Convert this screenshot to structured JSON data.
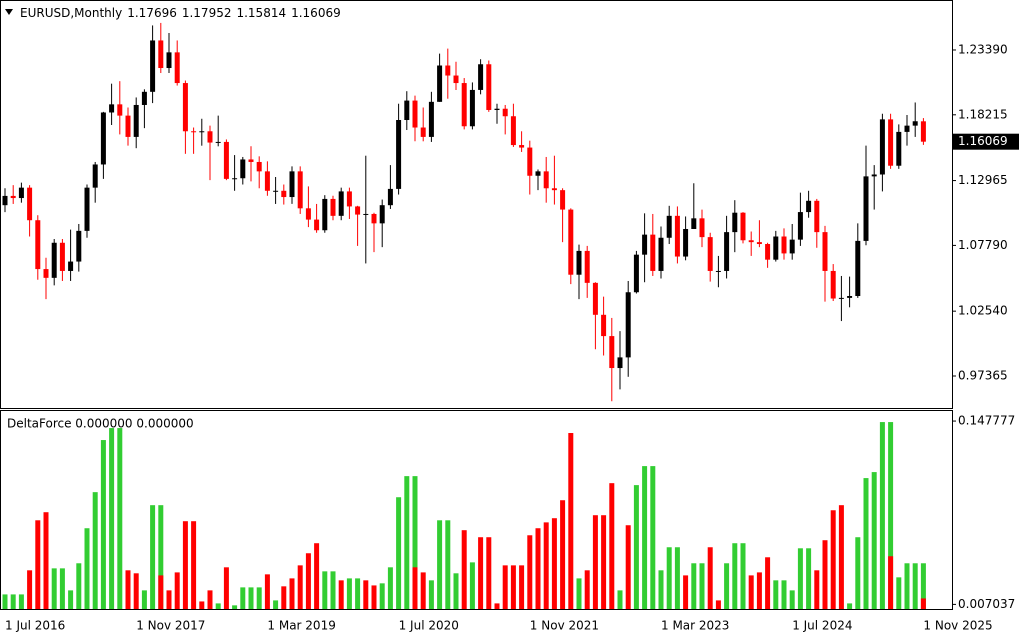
{
  "chart_data": [
    {
      "type": "candlestick",
      "title": "EURUSD,Monthly",
      "categories": [
        "1 Jul 2016",
        null,
        null,
        null,
        null,
        null,
        null,
        null,
        null,
        null,
        null,
        null,
        null,
        null,
        null,
        null,
        "1 Nov 2017",
        null,
        null,
        null,
        null,
        null,
        null,
        null,
        null,
        null,
        null,
        null,
        null,
        null,
        null,
        null,
        "1 Mar 2019",
        null,
        null,
        null,
        null,
        null,
        null,
        null,
        null,
        null,
        null,
        null,
        null,
        null,
        null,
        null,
        "1 Jul 2020",
        null,
        null,
        null,
        null,
        null,
        null,
        null,
        null,
        null,
        null,
        null,
        null,
        null,
        null,
        null,
        "1 Nov 2021",
        null,
        null,
        null,
        null,
        null,
        null,
        null,
        null,
        null,
        null,
        null,
        null,
        null,
        null,
        null,
        "1 Mar 2023",
        null,
        null,
        null,
        null,
        null,
        null,
        null,
        null,
        null,
        null,
        null,
        null,
        null,
        null,
        null,
        "1 Jul 2024",
        null,
        null,
        null,
        null,
        null,
        null,
        null,
        null,
        null,
        null,
        null,
        null,
        null,
        null,
        null,
        "1 Nov 2025"
      ],
      "open": [
        1.11,
        1.1174,
        1.1157,
        1.124,
        1.098,
        1.059,
        1.052,
        1.08,
        1.0575,
        1.065,
        1.0895,
        1.124,
        1.1425,
        1.184,
        1.1905,
        1.1815,
        1.1645,
        1.19,
        1.2005,
        1.2415,
        1.2195,
        1.232,
        1.2075,
        1.169,
        1.1685,
        1.169,
        1.16,
        1.1605,
        1.131,
        1.1315,
        1.1465,
        1.1445,
        1.137,
        1.1215,
        1.1215,
        1.1165,
        1.137,
        1.1075,
        1.0985,
        1.09,
        1.115,
        1.1015,
        1.121,
        1.109,
        1.1025,
        1.103,
        1.0955,
        1.11,
        1.123,
        1.178,
        1.1935,
        1.172,
        1.1645,
        1.1925,
        1.2215,
        1.2135,
        1.2075,
        1.173,
        1.202,
        1.2225,
        1.186,
        1.187,
        1.181,
        1.158,
        1.156,
        1.1335,
        1.137,
        1.1235,
        1.122,
        1.1065,
        1.0545,
        1.0735,
        1.048,
        1.0225,
        1.0055,
        0.98,
        0.9885,
        1.0405,
        1.0705,
        1.0865,
        1.0575,
        1.084,
        1.1015,
        1.069,
        1.091,
        1.0995,
        1.0845,
        1.0575,
        1.0575,
        1.0885,
        1.104,
        1.082,
        1.0805,
        1.079,
        1.0665,
        1.085,
        1.0715,
        1.0825,
        1.1045,
        1.1135,
        1.0885,
        1.0575,
        1.0355,
        1.036,
        1.0375,
        1.0815,
        1.133,
        1.1345,
        1.1785,
        1.1415,
        1.1685,
        1.1735,
        1.17696
      ],
      "high": [
        1.1235,
        1.126,
        1.128,
        1.126,
        1.102,
        1.068,
        1.083,
        1.083,
        1.0905,
        1.095,
        1.1265,
        1.1445,
        1.1845,
        1.207,
        1.209,
        1.188,
        1.196,
        1.2025,
        1.2535,
        1.2555,
        1.2475,
        1.2415,
        1.2095,
        1.172,
        1.179,
        1.1735,
        1.1815,
        1.1625,
        1.15,
        1.1485,
        1.157,
        1.149,
        1.145,
        1.1325,
        1.1265,
        1.141,
        1.141,
        1.125,
        1.111,
        1.118,
        1.1175,
        1.124,
        1.124,
        1.1095,
        1.1495,
        1.104,
        1.1145,
        1.142,
        1.191,
        1.201,
        1.1975,
        1.188,
        1.2005,
        1.231,
        1.235,
        1.2245,
        1.2115,
        1.208,
        1.2265,
        1.2255,
        1.191,
        1.19,
        1.191,
        1.169,
        1.1615,
        1.1385,
        1.1485,
        1.1495,
        1.1235,
        1.1075,
        1.0785,
        1.0775,
        1.0485,
        1.037,
        1.02,
        1.0095,
        1.0495,
        1.0735,
        1.1035,
        1.103,
        1.093,
        1.1095,
        1.109,
        1.101,
        1.1275,
        1.1065,
        1.088,
        1.0695,
        1.1015,
        1.114,
        1.1045,
        1.089,
        1.098,
        1.08,
        1.0895,
        1.0915,
        1.095,
        1.12,
        1.1215,
        1.115,
        1.0935,
        1.063,
        1.0535,
        1.053,
        1.0955,
        1.1575,
        1.142,
        1.183,
        1.183,
        1.1745,
        1.182,
        1.192,
        1.17952
      ],
      "low": [
        1.1045,
        1.111,
        1.112,
        1.085,
        1.0505,
        1.035,
        1.046,
        1.0495,
        1.0495,
        1.057,
        1.084,
        1.112,
        1.131,
        1.174,
        1.1665,
        1.1575,
        1.1555,
        1.1715,
        1.1915,
        1.2155,
        1.2155,
        1.2055,
        1.151,
        1.151,
        1.1575,
        1.13,
        1.157,
        1.13,
        1.1215,
        1.1265,
        1.129,
        1.1235,
        1.1175,
        1.111,
        1.1105,
        1.111,
        1.103,
        1.0925,
        1.088,
        1.088,
        1.098,
        1.098,
        1.099,
        1.0775,
        1.0635,
        1.0725,
        1.0765,
        1.107,
        1.1185,
        1.17,
        1.161,
        1.161,
        1.1605,
        1.1925,
        1.195,
        1.202,
        1.1705,
        1.1705,
        1.1985,
        1.1845,
        1.175,
        1.1665,
        1.1565,
        1.1525,
        1.1185,
        1.122,
        1.112,
        1.1105,
        1.0805,
        1.047,
        1.035,
        1.036,
        0.995,
        0.99,
        0.9535,
        0.963,
        0.973,
        1.0395,
        1.0485,
        1.0535,
        1.0515,
        1.079,
        1.0635,
        1.066,
        1.091,
        1.0765,
        1.049,
        1.0445,
        1.0515,
        1.0725,
        1.0795,
        1.0695,
        1.0765,
        1.06,
        1.065,
        1.0665,
        1.0665,
        1.0775,
        1.1,
        1.076,
        1.033,
        1.0335,
        1.0175,
        1.0285,
        1.036,
        1.078,
        1.1065,
        1.121,
        1.139,
        1.139,
        1.1575,
        1.1645,
        1.15814
      ],
      "close": [
        1.1174,
        1.1157,
        1.124,
        1.098,
        1.059,
        1.052,
        1.08,
        1.0575,
        1.065,
        1.0895,
        1.124,
        1.1425,
        1.184,
        1.1905,
        1.1815,
        1.1645,
        1.19,
        1.2005,
        1.2415,
        1.2195,
        1.232,
        1.2075,
        1.169,
        1.1685,
        1.169,
        1.16,
        1.1605,
        1.131,
        1.1315,
        1.1465,
        1.1445,
        1.137,
        1.1215,
        1.1215,
        1.1165,
        1.137,
        1.1075,
        1.0985,
        1.09,
        1.115,
        1.1015,
        1.121,
        1.109,
        1.1025,
        1.103,
        1.0955,
        1.11,
        1.123,
        1.178,
        1.1935,
        1.172,
        1.1645,
        1.1925,
        1.2215,
        1.2135,
        1.2075,
        1.173,
        1.202,
        1.2225,
        1.186,
        1.187,
        1.181,
        1.158,
        1.156,
        1.1335,
        1.137,
        1.1235,
        1.122,
        1.1065,
        1.0545,
        1.0735,
        1.048,
        1.0225,
        1.0055,
        0.98,
        0.9885,
        1.0405,
        1.0705,
        1.0865,
        1.0575,
        1.084,
        1.1015,
        1.069,
        1.091,
        1.0995,
        1.0845,
        1.0575,
        1.0575,
        1.0885,
        1.104,
        1.082,
        1.0805,
        1.079,
        1.0665,
        1.085,
        1.0715,
        1.0825,
        1.1045,
        1.1135,
        1.0885,
        1.0575,
        1.0355,
        1.036,
        1.0375,
        1.0815,
        1.133,
        1.1345,
        1.1785,
        1.1415,
        1.1685,
        1.1735,
        1.177,
        1.16069
      ],
      "up_color": "#000000",
      "down_color": "#ff0000",
      "ylim": [
        0.9481,
        1.2714
      ],
      "yticks": [
        {
          "value": 1.2339,
          "label": "1.23390"
        },
        1.18215,
        1.12965,
        {
          "value": 1.0779,
          "label": "1.07790"
        },
        {
          "value": 1.0254,
          "label": "1.02540"
        },
        0.97365
      ]
    },
    {
      "type": "bar",
      "title": "DeltaForce 0.000000 0.000000",
      "series": [
        {
          "color": "#32cd32",
          "values": [
            0.0147,
            0.0147,
            0.0147,
            null,
            null,
            null,
            0.0347,
            0.0347,
            0.0178,
            0.0386,
            0.0655,
            0.0932,
            0.1332,
            0.1424,
            0.1424,
            null,
            null,
            0.0178,
            0.0832,
            0.0832,
            null,
            null,
            null,
            null,
            null,
            null,
            0.0078,
            null,
            0.0063,
            0.0201,
            0.0201,
            0.0201,
            null,
            0.0101,
            null,
            null,
            null,
            null,
            null,
            0.0324,
            0.0324,
            null,
            0.027,
            0.027,
            null,
            null,
            0.0232,
            0.0355,
            0.0893,
            0.1055,
            0.1055,
            null,
            0.0255,
            0.0716,
            0.0716,
            0.0309,
            null,
            0.0393,
            null,
            null,
            null,
            null,
            null,
            null,
            null,
            null,
            null,
            null,
            null,
            null,
            0.027,
            null,
            null,
            null,
            null,
            0.0178,
            null,
            0.0986,
            0.1132,
            0.1132,
            0.0332,
            0.0509,
            0.0509,
            null,
            0.0386,
            0.0386,
            null,
            null,
            0.0386,
            0.054,
            0.054,
            null,
            null,
            null,
            0.0255,
            0.0255,
            0.0178,
            0.0501,
            0.0501,
            null,
            null,
            null,
            null,
            0.0078,
            0.0586,
            0.104,
            0.1086,
            0.147,
            0.147,
            0.0278,
            0.0386,
            0.0386,
            0.0386
          ]
        },
        {
          "color": "#ff0000",
          "values": [
            null,
            null,
            null,
            0.0332,
            0.0716,
            0.0778,
            null,
            null,
            null,
            null,
            null,
            null,
            null,
            null,
            null,
            0.0332,
            0.0309,
            null,
            null,
            0.0293,
            0.0178,
            0.0316,
            0.0709,
            0.0709,
            0.0093,
            0.0178,
            null,
            0.0355,
            null,
            null,
            null,
            null,
            0.0301,
            null,
            0.0209,
            0.027,
            0.037,
            0.0463,
            0.054,
            null,
            null,
            0.0255,
            null,
            null,
            0.0255,
            0.0216,
            null,
            null,
            null,
            null,
            0.0355,
            0.0316,
            null,
            null,
            null,
            null,
            0.064,
            null,
            0.0586,
            0.0586,
            0.0078,
            0.037,
            0.037,
            0.037,
            0.0601,
            0.0655,
            0.07,
            0.0732,
            0.087,
            0.1386,
            null,
            0.0332,
            0.0755,
            0.0755,
            0.1001,
            null,
            0.0678,
            null,
            null,
            null,
            null,
            null,
            null,
            0.0293,
            null,
            null,
            0.0509,
            0.0101,
            null,
            null,
            null,
            0.0293,
            0.0316,
            0.0432,
            null,
            null,
            null,
            null,
            null,
            0.0332,
            0.0563,
            0.0793,
            0.0832,
            null,
            null,
            null,
            null,
            null,
            0.044,
            null,
            null,
            null,
            0.0116
          ]
        }
      ],
      "ylim": [
        0.0035,
        0.1555
      ],
      "yticks": [
        0.147777,
        0.007037
      ]
    }
  ]
}
